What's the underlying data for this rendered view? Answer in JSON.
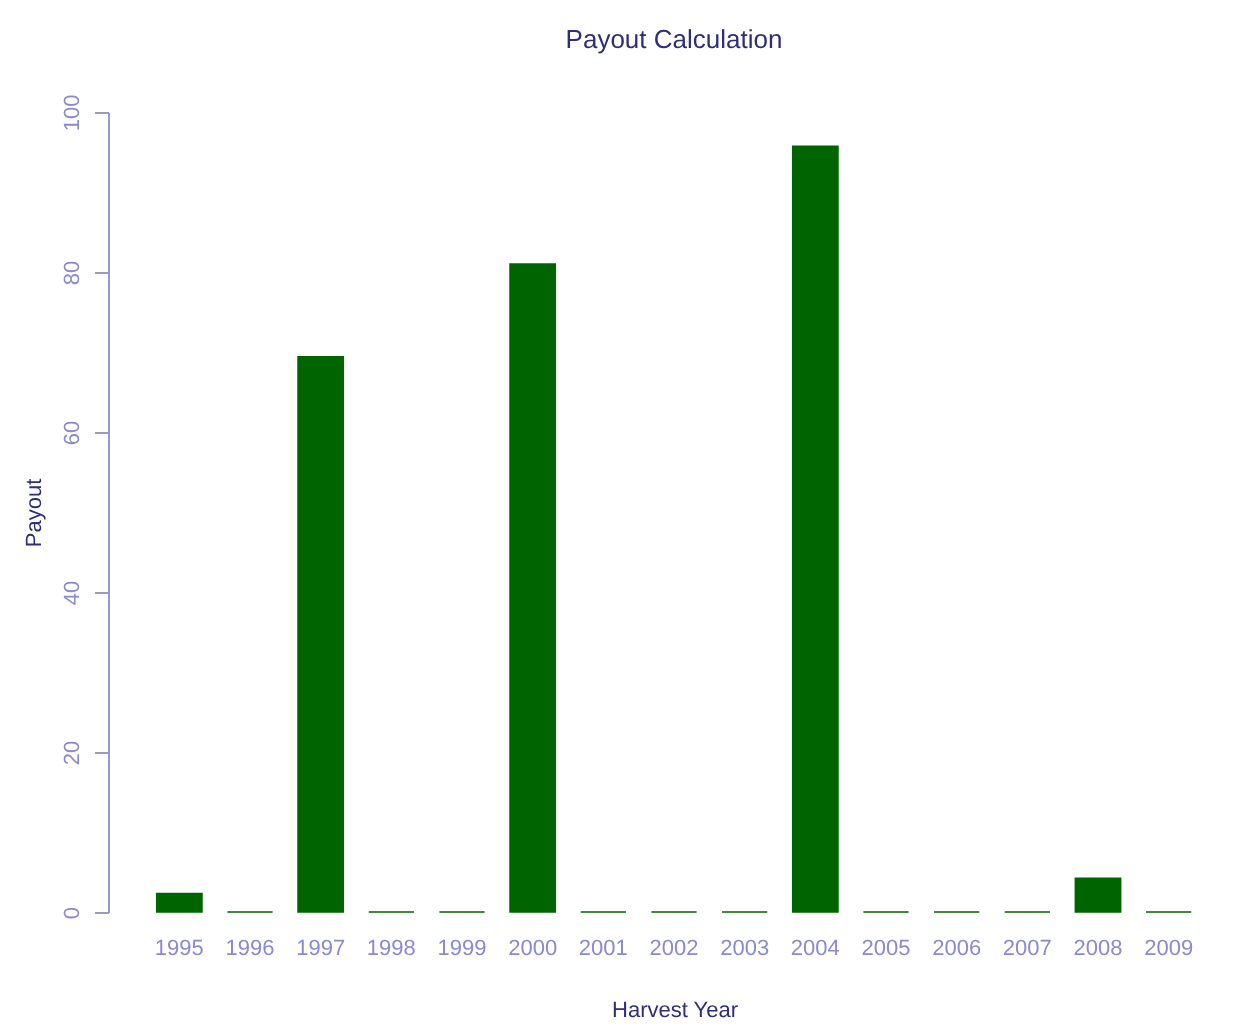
{
  "chart_data": {
    "type": "bar",
    "title": "Payout Calculation",
    "xlabel": "Harvest Year",
    "ylabel": "Payout",
    "categories": [
      "1995",
      "1996",
      "1997",
      "1998",
      "1999",
      "2000",
      "2001",
      "2002",
      "2003",
      "2004",
      "2005",
      "2006",
      "2007",
      "2008",
      "2009"
    ],
    "values": [
      2.3,
      0,
      69.4,
      0,
      0,
      81,
      0,
      0,
      0,
      95.7,
      0,
      0,
      0,
      4.2,
      0
    ],
    "color": "#006400",
    "ylim": [
      0,
      100
    ],
    "yticks": [
      0,
      20,
      40,
      60,
      80,
      100
    ],
    "grid": false
  }
}
